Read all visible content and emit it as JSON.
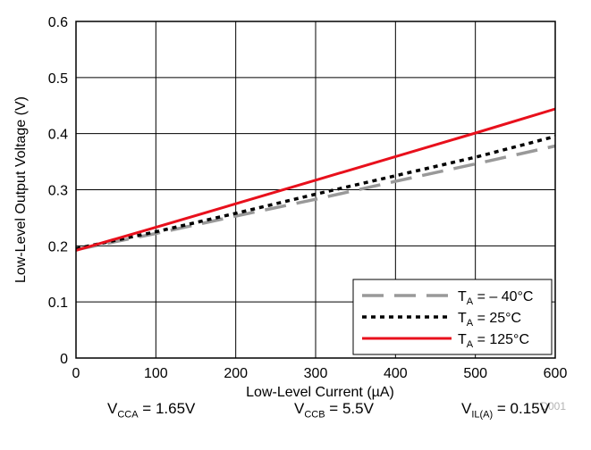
{
  "chart_data": {
    "type": "line",
    "title": "",
    "xlabel": "Low-Level Current (µA)",
    "ylabel": "Low-Level Output Voltage (V)",
    "xlim": [
      0,
      600
    ],
    "ylim": [
      0,
      0.6
    ],
    "x_ticks": [
      0,
      100,
      200,
      300,
      400,
      500,
      600
    ],
    "y_ticks": [
      0,
      0.1,
      0.2,
      0.3,
      0.4,
      0.5,
      0.6
    ],
    "x_tick_labels": [
      "0",
      "100",
      "200",
      "300",
      "400",
      "500",
      "600"
    ],
    "y_tick_labels": [
      "0",
      "0.1",
      "0.2",
      "0.3",
      "0.4",
      "0.5",
      "0.6"
    ],
    "grid": true,
    "legend_position": "bottom-right",
    "code_label": "D001",
    "series": [
      {
        "name": "T_A = – 40°C",
        "name_main": "T",
        "name_sub": "A",
        "name_rest": " = – 40°C",
        "color": "#999999",
        "style": "dashed",
        "x": [
          0,
          100,
          200,
          300,
          400,
          500,
          600
        ],
        "y": [
          0.193,
          0.222,
          0.253,
          0.283,
          0.315,
          0.346,
          0.378
        ]
      },
      {
        "name": "T_A = 25°C",
        "name_main": "T",
        "name_sub": "A",
        "name_rest": " = 25°C",
        "color": "#000000",
        "style": "dotted",
        "x": [
          0,
          100,
          200,
          300,
          400,
          500,
          600
        ],
        "y": [
          0.195,
          0.225,
          0.258,
          0.292,
          0.325,
          0.358,
          0.395
        ]
      },
      {
        "name": "T_A = 125°C",
        "name_main": "T",
        "name_sub": "A",
        "name_rest": " = 125°C",
        "color": "#e8101c",
        "style": "solid",
        "x": [
          0,
          100,
          200,
          300,
          400,
          500,
          600
        ],
        "y": [
          0.192,
          0.233,
          0.275,
          0.317,
          0.359,
          0.401,
          0.444
        ]
      }
    ]
  },
  "conditions": {
    "vcca": {
      "main": "V",
      "sub": "CCA",
      "rest": " = 1.65V"
    },
    "vccb": {
      "main": "V",
      "sub": "CCB",
      "rest": " = 5.5V"
    },
    "vil": {
      "main": "V",
      "sub": "IL(A)",
      "rest": " = 0.15V"
    }
  }
}
